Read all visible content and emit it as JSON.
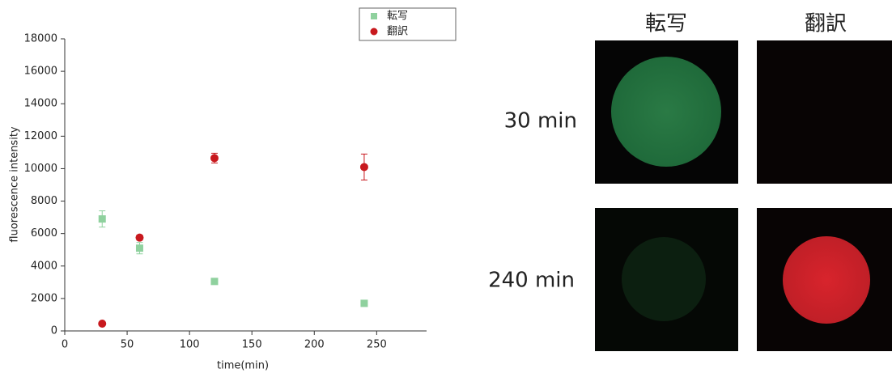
{
  "chart_data": {
    "type": "scatter",
    "x_label": "time(min)",
    "y_label": "fluorescence intensity",
    "xlim": [
      0,
      290
    ],
    "xticks": [
      0,
      50,
      100,
      150,
      200,
      250
    ],
    "ylim": [
      0,
      18000
    ],
    "yticks": [
      0,
      2000,
      4000,
      6000,
      8000,
      10000,
      12000,
      14000,
      16000,
      18000
    ],
    "legend": "top-right",
    "series": [
      {
        "name": "転写",
        "color": "#8fd19e",
        "marker": "square",
        "x": [
          30,
          60,
          120,
          240
        ],
        "values": [
          6900,
          5100,
          3050,
          1700
        ],
        "errors": [
          500,
          350,
          100,
          100
        ]
      },
      {
        "name": "翻訳",
        "color": "#c8191e",
        "marker": "circle",
        "x": [
          30,
          60,
          120,
          240
        ],
        "values": [
          450,
          5750,
          10650,
          10100
        ],
        "errors": [
          100,
          150,
          300,
          800
        ]
      }
    ]
  },
  "image_grid": {
    "columns": [
      "転写",
      "翻訳"
    ],
    "rows": [
      "30 min",
      "240 min"
    ]
  }
}
